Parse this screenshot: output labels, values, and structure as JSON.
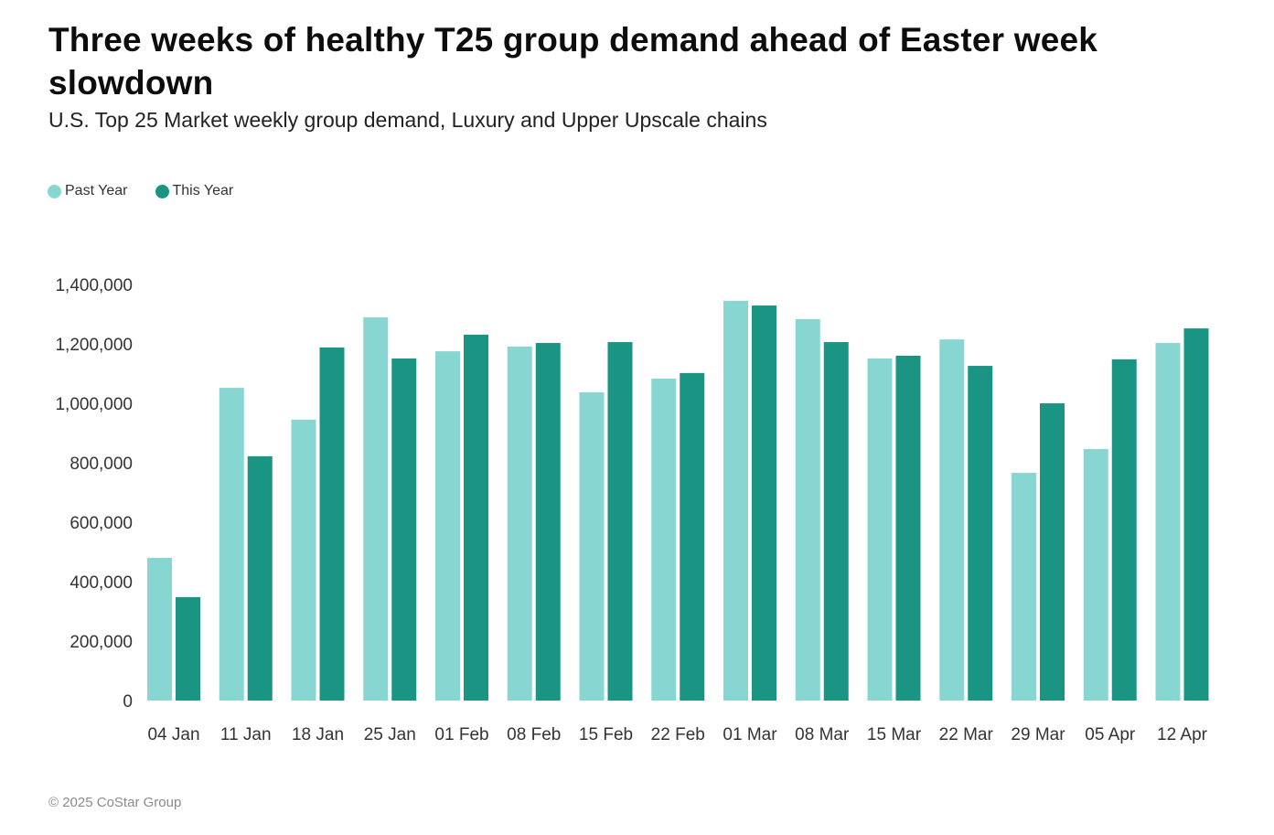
{
  "title": "Three weeks of healthy T25 group demand ahead of Easter week slowdown",
  "subtitle": "U.S. Top 25 Market weekly group demand, Luxury and Upper Upscale chains",
  "footer": "© 2025 CoStar Group",
  "colors": {
    "past_year": "#88d6d1",
    "this_year": "#1a9583"
  },
  "chart_data": {
    "type": "bar",
    "title": "Three weeks of healthy T25 group demand ahead of Easter week slowdown",
    "subtitle": "U.S. Top 25 Market weekly group demand, Luxury and Upper Upscale chains",
    "xlabel": "",
    "ylabel": "",
    "ylim": [
      0,
      1400000
    ],
    "yticks": [
      0,
      200000,
      400000,
      600000,
      800000,
      1000000,
      1200000,
      1400000
    ],
    "ytick_labels": [
      "0",
      "200,000",
      "400,000",
      "600,000",
      "800,000",
      "1,000,000",
      "1,200,000",
      "1,400,000"
    ],
    "grid": false,
    "legend_position": "top-left",
    "categories": [
      "04 Jan",
      "11 Jan",
      "18 Jan",
      "25 Jan",
      "01 Feb",
      "08 Feb",
      "15 Feb",
      "22 Feb",
      "01 Mar",
      "08 Mar",
      "15 Mar",
      "22 Mar",
      "29 Mar",
      "05 Apr",
      "12 Apr"
    ],
    "series": [
      {
        "name": "Past Year",
        "color": "#88d6d1",
        "values": [
          480000,
          1052000,
          945000,
          1289000,
          1175000,
          1191000,
          1037000,
          1083000,
          1345000,
          1283000,
          1151000,
          1215000,
          766000,
          846000,
          1203000
        ]
      },
      {
        "name": "This Year",
        "color": "#1a9583",
        "values": [
          348000,
          822000,
          1188000,
          1151000,
          1231000,
          1203000,
          1206000,
          1102000,
          1329000,
          1206000,
          1160000,
          1126000,
          1000000,
          1148000,
          1252000
        ]
      }
    ]
  }
}
